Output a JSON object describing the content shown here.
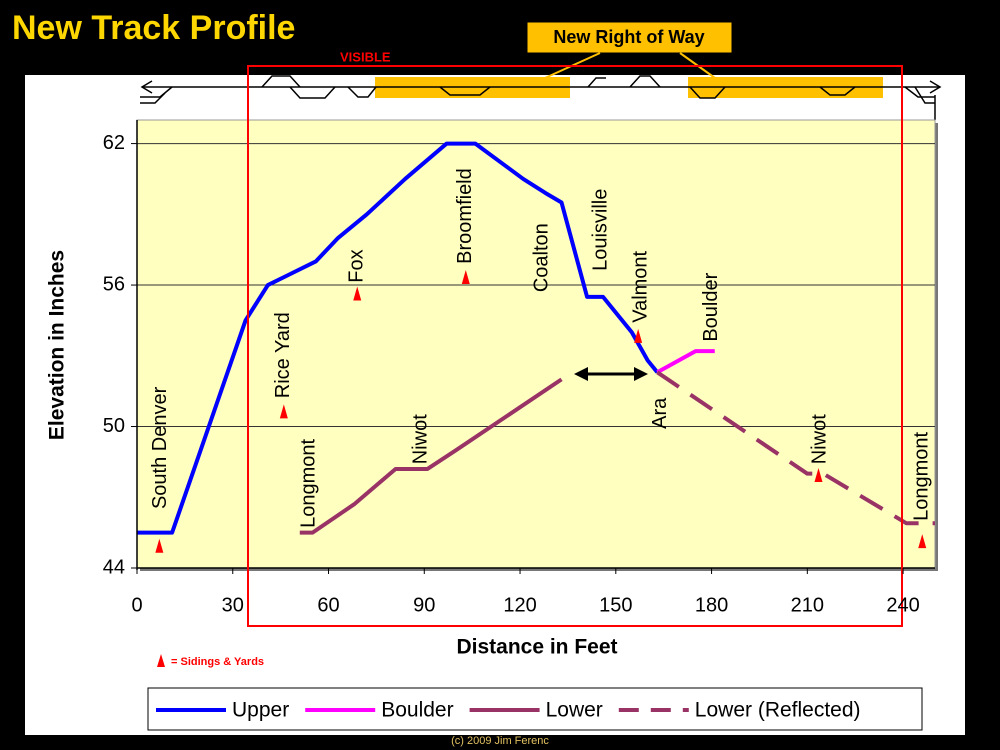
{
  "chart_data": {
    "type": "line",
    "title": "New Track Profile",
    "right_of_way_label": "New Right of Way",
    "visible_label": "VISIBLE",
    "xlabel": "Distance in Feet",
    "ylabel": "Elevation in Inches",
    "xlim": [
      0,
      250
    ],
    "ylim": [
      44,
      63
    ],
    "xticks": [
      0,
      30,
      60,
      90,
      120,
      150,
      180,
      210,
      240
    ],
    "yticks": [
      44,
      50,
      56,
      62
    ],
    "grid": true,
    "legend": "bottom",
    "series": [
      {
        "name": "Upper",
        "color": "#0000ff",
        "dashed": false,
        "x": [
          0,
          11,
          34,
          41,
          47,
          56,
          63,
          72,
          84,
          97,
          106,
          121,
          128,
          133,
          141,
          146,
          155,
          160,
          163
        ],
        "y": [
          45.5,
          45.5,
          54.5,
          56,
          56.4,
          57,
          58,
          59,
          60.5,
          62,
          62,
          60.5,
          59.9,
          59.5,
          55.5,
          55.5,
          54,
          52.8,
          52.3
        ]
      },
      {
        "name": "Boulder",
        "color": "#ff00ff",
        "dashed": false,
        "x": [
          163,
          175,
          181
        ],
        "y": [
          52.3,
          53.2,
          53.2
        ]
      },
      {
        "name": "Lower",
        "color": "#993366",
        "dashed": false,
        "x": [
          51,
          55,
          68,
          81,
          91,
          100,
          133
        ],
        "y": [
          45.5,
          45.5,
          46.7,
          48.2,
          48.2,
          49,
          52
        ]
      },
      {
        "name": "Lower (Reflected)",
        "color": "#993366",
        "dashed": true,
        "x": [
          163,
          210,
          215,
          241,
          250
        ],
        "y": [
          52.3,
          48,
          48,
          45.9,
          45.9
        ]
      }
    ],
    "sidings_key": "= Sidings & Yards",
    "sidings_color": "#ff0000",
    "sidings": [
      {
        "x": 7,
        "y": 44.9
      },
      {
        "x": 46,
        "y": 50.6
      },
      {
        "x": 69,
        "y": 55.6
      },
      {
        "x": 103,
        "y": 56.3
      },
      {
        "x": 157,
        "y": 53.8
      },
      {
        "x": 213.5,
        "y": 47.9
      },
      {
        "x": 246,
        "y": 45.1
      }
    ],
    "stations": [
      {
        "label": "South Denver",
        "x": 7.5,
        "y": 46.5
      },
      {
        "label": "Rice Yard",
        "x": 46,
        "y": 51.2
      },
      {
        "label": "Longmont",
        "x": 54,
        "y": 45.7
      },
      {
        "label": "Fox",
        "x": 69,
        "y": 56.1
      },
      {
        "label": "Niwot",
        "x": 89,
        "y": 48.4
      },
      {
        "label": "Broomfield",
        "x": 103,
        "y": 56.9
      },
      {
        "label": "Coalton",
        "x": 127,
        "y": 55.7
      },
      {
        "label": "Louisville",
        "x": 145.5,
        "y": 56.6
      },
      {
        "label": "Valmont",
        "x": 158,
        "y": 54.4
      },
      {
        "label": "Ara",
        "x": 164,
        "y": 49.9
      },
      {
        "label": "Boulder",
        "x": 180,
        "y": 53.6
      },
      {
        "label": "Niwot",
        "x": 214,
        "y": 48.4
      },
      {
        "label": "Longmont",
        "x": 246,
        "y": 46
      }
    ],
    "copyright": "(c) 2009  Jim Ferenc"
  }
}
